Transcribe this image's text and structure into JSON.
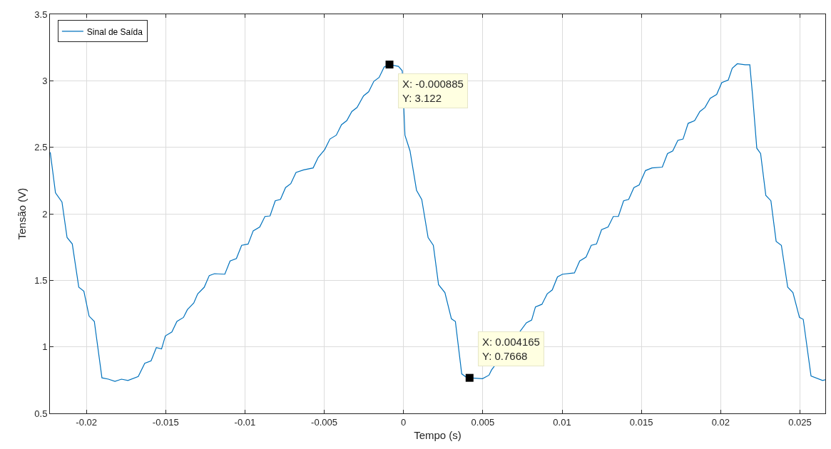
{
  "chart_data": {
    "type": "line",
    "xlabel": "Tempo (s)",
    "ylabel": "Tensão (V)",
    "xlim": [
      -0.0223,
      0.0266
    ],
    "ylim": [
      0.5,
      3.5
    ],
    "xticks": [
      -0.02,
      -0.015,
      -0.01,
      -0.005,
      0,
      0.005,
      0.01,
      0.015,
      0.02,
      0.025
    ],
    "yticks": [
      0.5,
      1,
      1.5,
      2,
      2.5,
      3,
      3.5
    ],
    "grid": true,
    "legend": "top left",
    "series": [
      {
        "name": "Sinal de Saída",
        "color": "#0072bd",
        "marker": "none",
        "line_style": "solid",
        "x": [
          -0.02228,
          -0.02195,
          -0.02154,
          -0.02122,
          -0.02089,
          -0.02048,
          -0.02016,
          -0.01983,
          -0.0195,
          -0.01902,
          -0.01861,
          -0.0182,
          -0.01779,
          -0.01738,
          -0.01673,
          -0.01632,
          -0.01592,
          -0.01559,
          -0.01526,
          -0.01502,
          -0.01461,
          -0.01429,
          -0.01388,
          -0.01363,
          -0.01323,
          -0.01298,
          -0.01257,
          -0.01225,
          -0.01192,
          -0.01127,
          -0.01094,
          -0.01054,
          -0.01021,
          -0.0098,
          -0.00948,
          -0.00907,
          -0.00874,
          -0.00842,
          -0.00809,
          -0.00776,
          -0.00744,
          -0.00711,
          -0.00678,
          -0.0063,
          -0.0057,
          -0.00538,
          -0.00497,
          -0.00464,
          -0.00424,
          -0.00391,
          -0.00358,
          -0.00326,
          -0.00293,
          -0.00252,
          -0.0022,
          -0.00187,
          -0.00154,
          -0.00122,
          -0.000885,
          -0.00032,
          -8e-05,
          9e-05,
          0.00041,
          0.00082,
          0.00115,
          0.00155,
          0.00188,
          0.00221,
          0.00261,
          0.00302,
          0.00327,
          0.00367,
          0.00408,
          0.004165,
          0.00498,
          0.00539,
          0.00555,
          0.00775,
          0.00808,
          0.00832,
          0.00873,
          0.00906,
          0.00938,
          0.00971,
          0.01003,
          0.01078,
          0.01111,
          0.01151,
          0.01184,
          0.01217,
          0.01249,
          0.0129,
          0.01323,
          0.01355,
          0.01388,
          0.0142,
          0.01453,
          0.01486,
          0.01526,
          0.01567,
          0.01632,
          0.01665,
          0.01698,
          0.0173,
          0.01763,
          0.01795,
          0.01836,
          0.01869,
          0.01901,
          0.01934,
          0.01975,
          0.02007,
          0.02048,
          0.02073,
          0.02105,
          0.02154,
          0.02184,
          0.02203,
          0.02228,
          0.02252,
          0.02285,
          0.02317,
          0.0235,
          0.02383,
          0.02423,
          0.02456,
          0.02497,
          0.02521,
          0.0257,
          0.02643,
          0.0266
        ],
        "values": [
          2.463,
          2.158,
          2.089,
          1.822,
          1.773,
          1.448,
          1.418,
          1.231,
          1.191,
          0.767,
          0.757,
          0.741,
          0.757,
          0.747,
          0.777,
          0.876,
          0.895,
          0.994,
          0.984,
          1.082,
          1.112,
          1.191,
          1.221,
          1.28,
          1.329,
          1.398,
          1.448,
          1.536,
          1.55,
          1.546,
          1.645,
          1.664,
          1.763,
          1.773,
          1.872,
          1.901,
          1.98,
          1.984,
          2.098,
          2.108,
          2.197,
          2.227,
          2.311,
          2.33,
          2.345,
          2.424,
          2.483,
          2.562,
          2.591,
          2.67,
          2.7,
          2.769,
          2.799,
          2.887,
          2.917,
          2.996,
          3.025,
          3.104,
          3.122,
          3.108,
          3.075,
          2.591,
          2.473,
          2.177,
          2.108,
          1.822,
          1.763,
          1.467,
          1.408,
          1.211,
          1.191,
          0.797,
          0.761,
          0.767,
          0.761,
          0.787,
          0.826,
          1.181,
          1.201,
          1.3,
          1.32,
          1.398,
          1.428,
          1.526,
          1.546,
          1.556,
          1.645,
          1.674,
          1.763,
          1.773,
          1.881,
          1.901,
          1.98,
          1.98,
          2.098,
          2.108,
          2.197,
          2.217,
          2.325,
          2.345,
          2.351,
          2.453,
          2.473,
          2.552,
          2.562,
          2.68,
          2.7,
          2.769,
          2.799,
          2.868,
          2.897,
          2.986,
          3.006,
          3.094,
          3.128,
          3.12,
          3.12,
          2.868,
          2.493,
          2.453,
          2.138,
          2.098,
          1.793,
          1.763,
          1.448,
          1.408,
          1.221,
          1.207,
          0.781,
          0.747,
          0.753
        ]
      },
      {
        "type": "scatter",
        "color": "#000000",
        "marker": "square",
        "x": [
          -0.000885,
          0.004165
        ],
        "values": [
          3.122,
          0.767
        ]
      }
    ],
    "annotations": [
      {
        "text": "X: -0.000885\nY: 3.122",
        "x": -0.000885,
        "y": 3.122
      },
      {
        "text": "X: 0.004165\nY: 0.7668",
        "x": 0.004165,
        "y": 0.7668
      }
    ]
  }
}
